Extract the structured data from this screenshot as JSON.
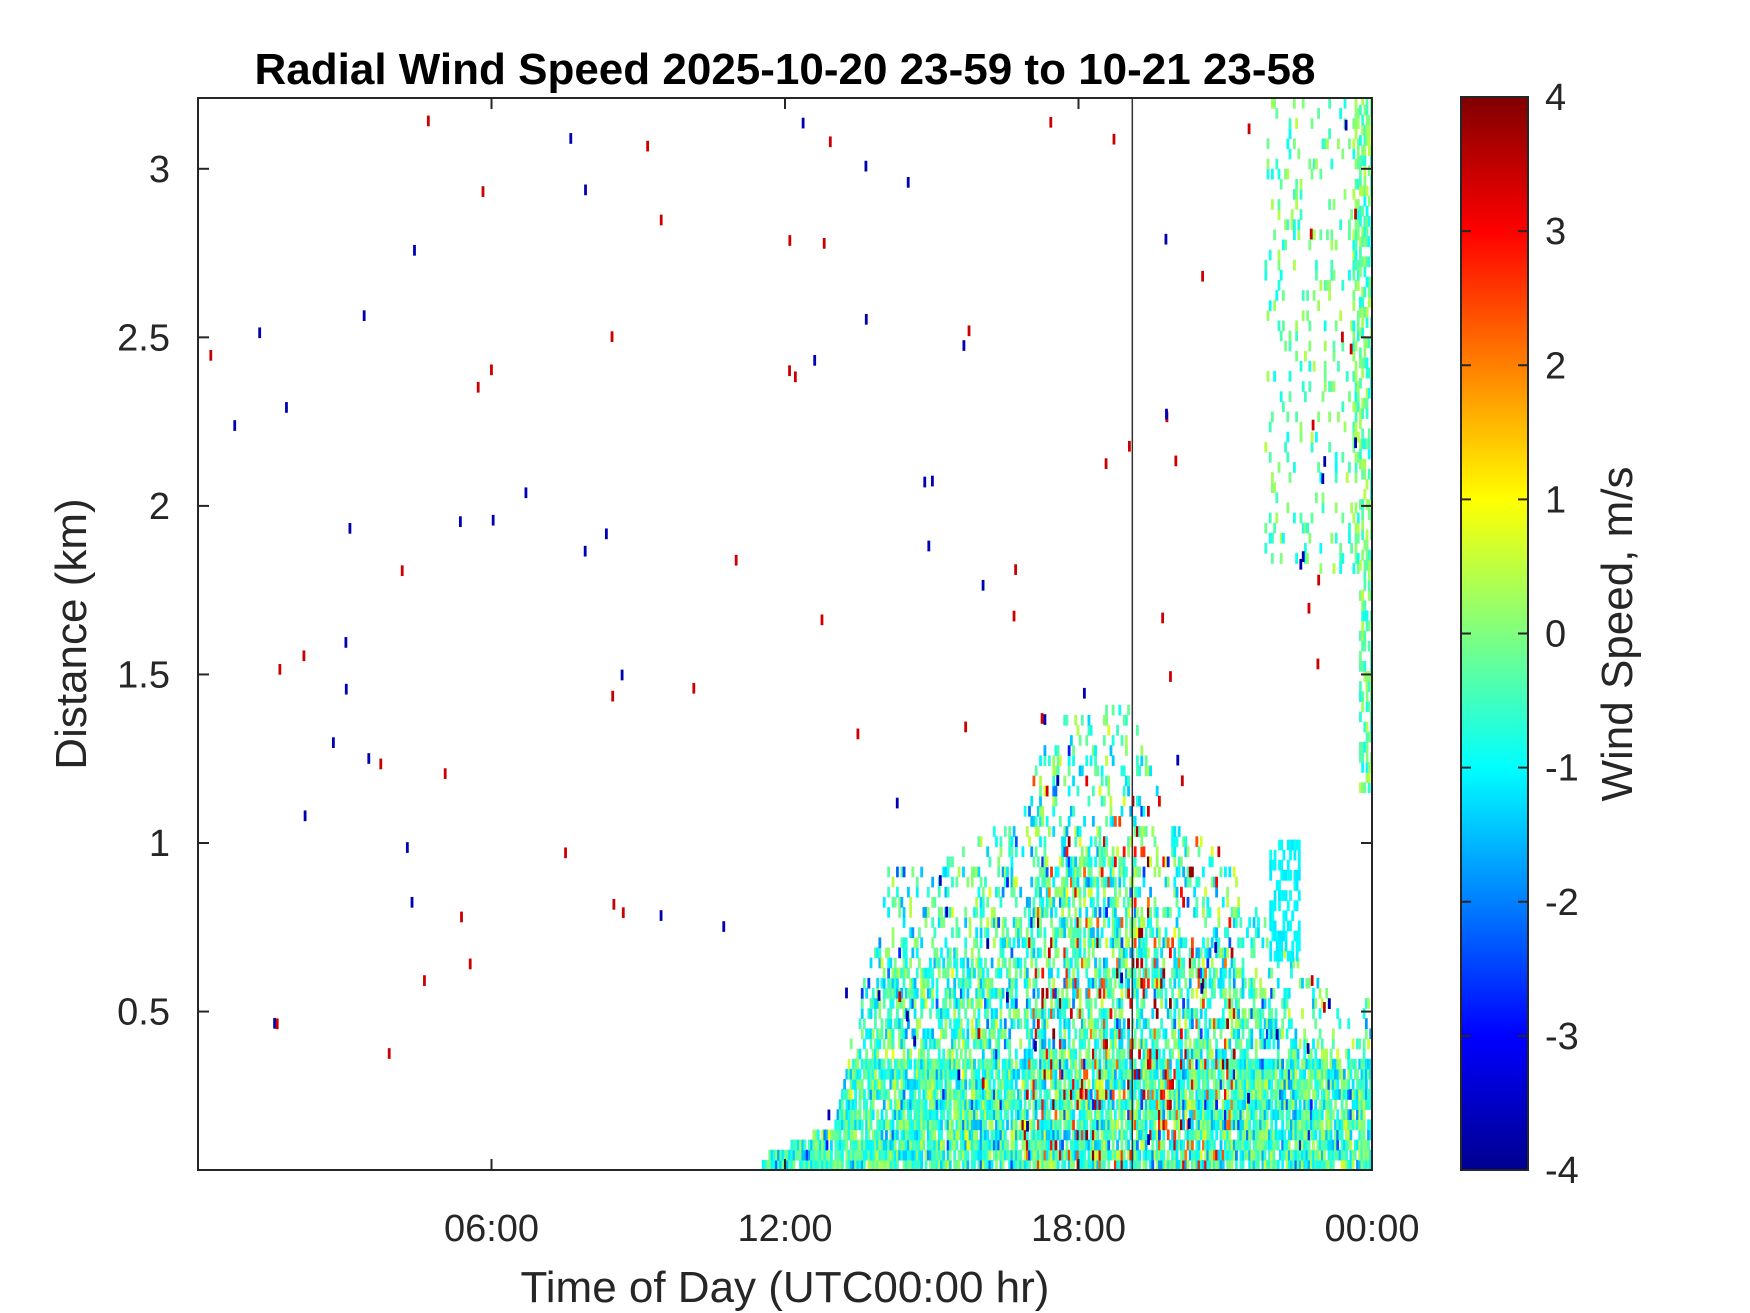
{
  "chart_data": {
    "type": "heatmap",
    "title": "Radial Wind Speed 2025-10-20 23-59 to 10-21 23-58",
    "xlabel": "Time of Day (UTC00:00 hr)",
    "ylabel": "Distance (km)",
    "x_unit": "hours",
    "xlim": [
      0,
      24
    ],
    "ylim": [
      0.03,
      3.21
    ],
    "xticks": [
      {
        "value": 6,
        "label": "06:00"
      },
      {
        "value": 12,
        "label": "12:00"
      },
      {
        "value": 18,
        "label": "18:00"
      },
      {
        "value": 24,
        "label": "00:00"
      }
    ],
    "yticks": [
      {
        "value": 0.5,
        "label": "0.5"
      },
      {
        "value": 1,
        "label": "1"
      },
      {
        "value": 1.5,
        "label": "1.5"
      },
      {
        "value": 2,
        "label": "2"
      },
      {
        "value": 2.5,
        "label": "2.5"
      },
      {
        "value": 3,
        "label": "3"
      }
    ],
    "colorbar": {
      "label": "Wind Speed, m/s",
      "range": [
        -4,
        4
      ],
      "colormap": "jet",
      "ticks": [
        -4,
        -3,
        -2,
        -1,
        0,
        1,
        2,
        3,
        4
      ]
    },
    "vertical_line_hours": 19.1,
    "echo_regions": [
      {
        "name": "main boundary layer echo",
        "x_range": [
          11.3,
          24
        ],
        "max_height_km": [
          0.05,
          1.4
        ],
        "typical_speed": [
          -1.5,
          0.5
        ]
      },
      {
        "name": "strong positive streaks",
        "x_range": [
          16.8,
          21.2
        ],
        "height_km": [
          0.1,
          1.2
        ],
        "speed": [
          2,
          4
        ]
      },
      {
        "name": "upper echo late day",
        "x_range": [
          21.8,
          24
        ],
        "height_km": [
          1.8,
          3.2
        ],
        "speed": [
          -1,
          0.5
        ]
      },
      {
        "name": "cyan patch",
        "x_range": [
          21.9,
          22.5
        ],
        "height_km": [
          0.65,
          1.0
        ],
        "speed": [
          -1.2,
          -0.9
        ]
      }
    ],
    "grid": false
  }
}
